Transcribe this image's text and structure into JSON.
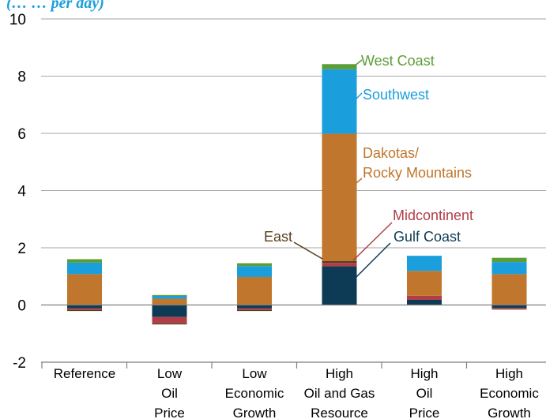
{
  "chart_data": {
    "type": "bar",
    "stacked": true,
    "title": "(… … per day)",
    "ylim": [
      -2,
      10
    ],
    "yticks": [
      -2,
      0,
      2,
      4,
      6,
      8,
      10
    ],
    "grid": true,
    "categories": [
      [
        "Reference"
      ],
      [
        "Low",
        "Oil",
        "Price"
      ],
      [
        "Low",
        "Economic",
        "Growth"
      ],
      [
        "High",
        "Oil and Gas",
        "Resource"
      ],
      [
        "High",
        "Oil",
        "Price"
      ],
      [
        "High",
        "Economic",
        "Growth"
      ]
    ],
    "series": [
      {
        "name": "Gulf Coast",
        "color": "#0d3b55",
        "values": [
          -0.12,
          -0.42,
          -0.12,
          1.35,
          0.18,
          -0.1
        ]
      },
      {
        "name": "Midcontinent",
        "color": "#b13d48",
        "values": [
          -0.05,
          -0.22,
          -0.05,
          0.12,
          0.14,
          -0.04
        ]
      },
      {
        "name": "East",
        "color": "#5a3d1a",
        "values": [
          -0.04,
          -0.04,
          -0.04,
          0.07,
          0.0,
          -0.02
        ]
      },
      {
        "name": "Dakotas/\nRocky Mountains",
        "color": "#c0762c",
        "values": [
          1.08,
          0.22,
          0.98,
          4.45,
          0.87,
          1.08
        ]
      },
      {
        "name": "Southwest",
        "color": "#1a9edc",
        "values": [
          0.4,
          0.1,
          0.38,
          2.25,
          0.53,
          0.42
        ]
      },
      {
        "name": "West Coast",
        "color": "#5b9d36",
        "values": [
          0.12,
          0.03,
          0.1,
          0.18,
          0.0,
          0.15
        ]
      }
    ],
    "annotations": [
      {
        "series": "West Coast",
        "text": [
          "West Coast"
        ]
      },
      {
        "series": "Southwest",
        "text": [
          "Southwest"
        ]
      },
      {
        "series": "Dakotas/\nRocky Mountains",
        "text": [
          "Dakotas/",
          "Rocky Mountains"
        ]
      },
      {
        "series": "Midcontinent",
        "text": [
          "Midcontinent"
        ]
      },
      {
        "series": "Gulf Coast",
        "text": [
          "Gulf Coast"
        ]
      },
      {
        "series": "East",
        "text": [
          "East"
        ]
      }
    ]
  }
}
